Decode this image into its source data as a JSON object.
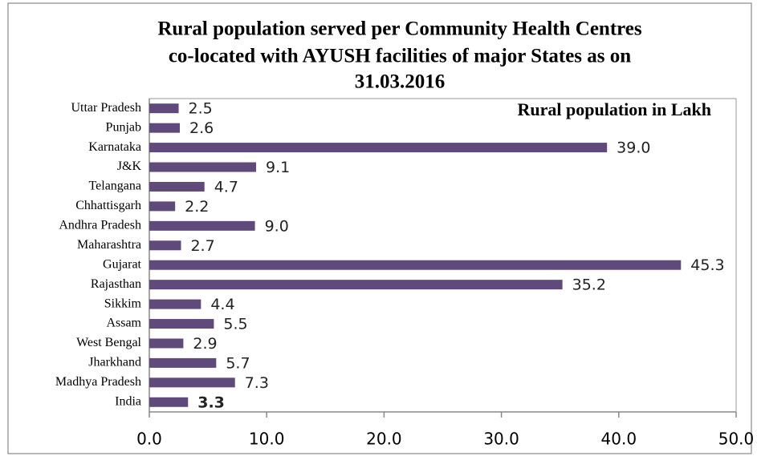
{
  "chart_data": {
    "type": "bar",
    "orientation": "horizontal",
    "title_lines": [
      "Rural population served per Community Health Centres",
      "co-located with AYUSH facilities  of major States as on",
      "31.03.2016"
    ],
    "annotation": "Rural population in Lakh",
    "categories": [
      "Uttar Pradesh",
      "Punjab",
      "Karnataka",
      "J&K",
      "Telangana",
      "Chhattisgarh",
      "Andhra Pradesh",
      "Maharashtra",
      "Gujarat",
      "Rajasthan",
      "Sikkim",
      "Assam",
      "West Bengal",
      "Jharkhand",
      "Madhya Pradesh",
      "India"
    ],
    "values": [
      2.5,
      2.6,
      39.0,
      9.1,
      4.7,
      2.2,
      9.0,
      2.7,
      45.3,
      35.2,
      4.4,
      5.5,
      2.9,
      5.7,
      7.3,
      3.3
    ],
    "value_labels": [
      "2.5",
      "2.6",
      "39.0",
      "9.1",
      "4.7",
      "2.2",
      "9.0",
      "2.7",
      "45.3",
      "35.2",
      "4.4",
      "5.5",
      "2.9",
      "5.7",
      "7.3",
      "3.3"
    ],
    "bold_last_label": true,
    "color": "#5f4a7b",
    "xlim": [
      0,
      50
    ],
    "xticks": [
      {
        "value": 0,
        "label": "0.0"
      },
      {
        "value": 10,
        "label": "10.0"
      },
      {
        "value": 20,
        "label": "20.0"
      },
      {
        "value": 30,
        "label": "30.0"
      },
      {
        "value": 40,
        "label": "40.0"
      },
      {
        "value": 50,
        "label": "50.0"
      }
    ],
    "grid": false
  }
}
